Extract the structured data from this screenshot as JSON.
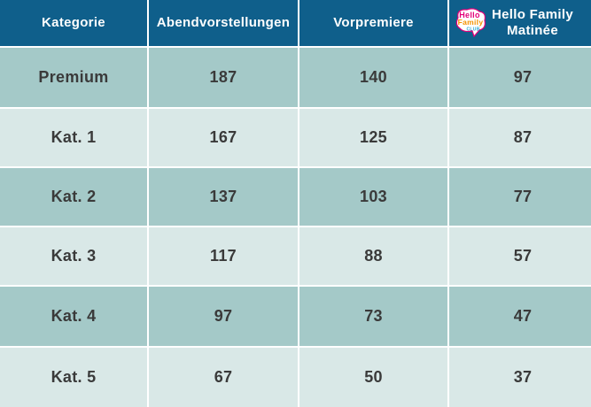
{
  "header": {
    "col1": "Kategorie",
    "col2": "Abendvorstellungen",
    "col3": "Vorpremiere",
    "col4_line1": "Hello Family",
    "col4_line2": "Matinée",
    "logo_text_1": "Hello",
    "logo_text_2": "Family",
    "logo_text_3": "CLUB"
  },
  "rows": [
    {
      "category": "Premium",
      "evening": "187",
      "preview": "140",
      "matinee": "97"
    },
    {
      "category": "Kat. 1",
      "evening": "167",
      "preview": "125",
      "matinee": "87"
    },
    {
      "category": "Kat. 2",
      "evening": "137",
      "preview": "103",
      "matinee": "77"
    },
    {
      "category": "Kat. 3",
      "evening": "117",
      "preview": "88",
      "matinee": "57"
    },
    {
      "category": "Kat. 4",
      "evening": "97",
      "preview": "73",
      "matinee": "47"
    },
    {
      "category": "Kat. 5",
      "evening": "67",
      "preview": "50",
      "matinee": "37"
    }
  ],
  "colors": {
    "header": "#0f5f8b",
    "row_dark": "#a4c9c8",
    "row_light": "#d9e8e7"
  }
}
